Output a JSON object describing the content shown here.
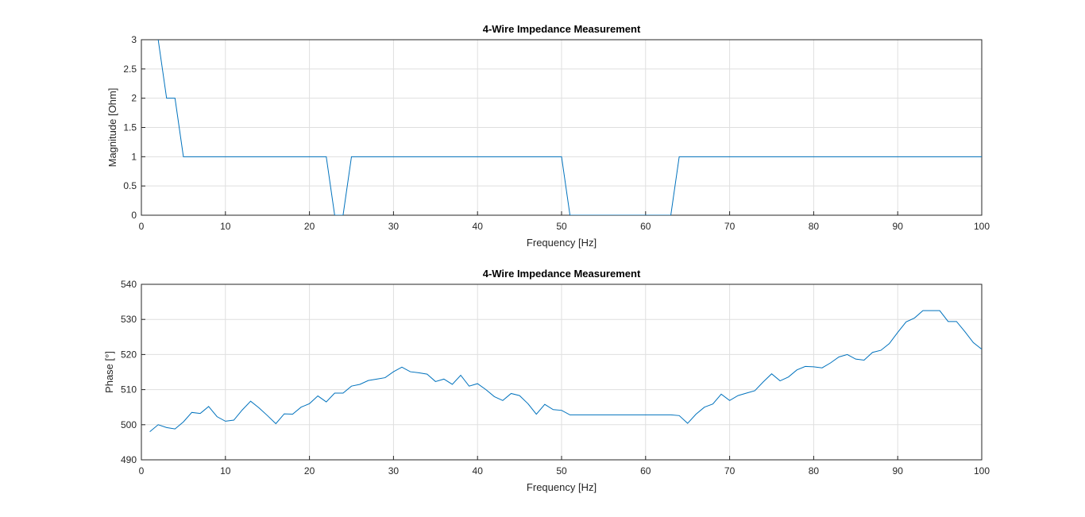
{
  "chart_data": [
    {
      "type": "line",
      "title": "4-Wire Impedance Measurement",
      "xlabel": "Frequency [Hz]",
      "ylabel": "Magnitude [Ohm]",
      "xlim": [
        0,
        100
      ],
      "ylim": [
        0,
        3
      ],
      "xticks": [
        0,
        10,
        20,
        30,
        40,
        50,
        60,
        70,
        80,
        90,
        100
      ],
      "yticks": [
        0,
        0.5,
        1,
        1.5,
        2,
        2.5,
        3
      ],
      "grid": true,
      "line_color": "#0072BD",
      "series": [
        {
          "x": [
            1,
            2,
            3,
            4,
            5,
            6,
            7,
            8,
            9,
            10,
            11,
            12,
            13,
            14,
            15,
            16,
            17,
            18,
            19,
            20,
            21,
            22,
            23,
            24,
            25,
            26,
            27,
            28,
            29,
            30,
            31,
            32,
            33,
            34,
            35,
            36,
            37,
            38,
            39,
            40,
            41,
            42,
            43,
            44,
            45,
            46,
            47,
            48,
            49,
            50,
            51,
            52,
            53,
            54,
            55,
            56,
            57,
            58,
            59,
            60,
            61,
            62,
            63,
            64,
            65,
            66,
            67,
            68,
            69,
            70,
            71,
            72,
            73,
            74,
            75,
            76,
            77,
            78,
            79,
            80,
            81,
            82,
            83,
            84,
            85,
            86,
            87,
            88,
            89,
            90,
            91,
            92,
            93,
            94,
            95,
            96,
            97,
            98,
            99,
            100
          ],
          "y": [
            5,
            3,
            2,
            2,
            1,
            1,
            1,
            1,
            1,
            1,
            1,
            1,
            1,
            1,
            1,
            1,
            1,
            1,
            1,
            1,
            1,
            1,
            0,
            0,
            1,
            1,
            1,
            1,
            1,
            1,
            1,
            1,
            1,
            1,
            1,
            1,
            1,
            1,
            1,
            1,
            1,
            1,
            1,
            1,
            1,
            1,
            1,
            1,
            1,
            1,
            0,
            0,
            0,
            0,
            0,
            0,
            0,
            0,
            0,
            0,
            0,
            0,
            0,
            1,
            1,
            1,
            1,
            1,
            1,
            1,
            1,
            1,
            1,
            1,
            1,
            1,
            1,
            1,
            1,
            1,
            1,
            1,
            1,
            1,
            1,
            1,
            1,
            1,
            1,
            1,
            1,
            1,
            1,
            1,
            1,
            1,
            1,
            1,
            1,
            1
          ]
        }
      ]
    },
    {
      "type": "line",
      "title": "4-Wire Impedance Measurement",
      "xlabel": "Frequency [Hz]",
      "ylabel": "Phase [°]",
      "xlim": [
        0,
        100
      ],
      "ylim": [
        490,
        540
      ],
      "xticks": [
        0,
        10,
        20,
        30,
        40,
        50,
        60,
        70,
        80,
        90,
        100
      ],
      "yticks": [
        490,
        500,
        510,
        520,
        530,
        540
      ],
      "grid": true,
      "line_color": "#0072BD",
      "series": [
        {
          "x": [
            1,
            2,
            3,
            4,
            5,
            6,
            7,
            8,
            9,
            10,
            11,
            12,
            13,
            14,
            15,
            16,
            17,
            18,
            19,
            20,
            21,
            22,
            23,
            24,
            25,
            26,
            27,
            28,
            29,
            30,
            31,
            32,
            33,
            34,
            35,
            36,
            37,
            38,
            39,
            40,
            41,
            42,
            43,
            44,
            45,
            46,
            47,
            48,
            49,
            50,
            51,
            52,
            53,
            54,
            55,
            56,
            57,
            58,
            59,
            60,
            61,
            62,
            63,
            64,
            65,
            66,
            67,
            68,
            69,
            70,
            71,
            72,
            73,
            74,
            75,
            76,
            77,
            78,
            79,
            80,
            81,
            82,
            83,
            84,
            85,
            86,
            87,
            88,
            89,
            90,
            91,
            92,
            93,
            94,
            95,
            96,
            97,
            98,
            99,
            100
          ],
          "y": [
            498,
            500,
            499.2,
            498.8,
            500.8,
            503.5,
            503.2,
            505.2,
            502.3,
            501,
            501.3,
            504.2,
            506.7,
            504.8,
            502.6,
            500.3,
            503.1,
            503,
            505,
            506,
            508.2,
            506.5,
            509,
            509,
            511,
            511.5,
            512.6,
            513,
            513.4,
            515.1,
            516.4,
            515.1,
            514.8,
            514.4,
            512.3,
            513,
            511.5,
            514.1,
            511,
            511.7,
            510,
            508,
            506.9,
            508.9,
            508.3,
            506,
            503,
            505.8,
            504.3,
            504.1,
            502.8,
            502.8,
            502.8,
            502.8,
            502.8,
            502.8,
            502.8,
            502.8,
            502.8,
            502.8,
            502.8,
            502.8,
            502.8,
            502.6,
            500.4,
            503,
            505,
            505.9,
            508.7,
            506.9,
            508.3,
            509,
            509.7,
            512.2,
            514.5,
            512.5,
            513.6,
            515.6,
            516.6,
            516.5,
            516.2,
            517.6,
            519.3,
            520,
            518.7,
            518.4,
            520.6,
            521.2,
            523.1,
            526.3,
            529.3,
            530.4,
            532.5,
            532.5,
            532.5,
            529.4,
            529.4,
            526.5,
            523.4,
            521.5
          ]
        }
      ]
    }
  ]
}
